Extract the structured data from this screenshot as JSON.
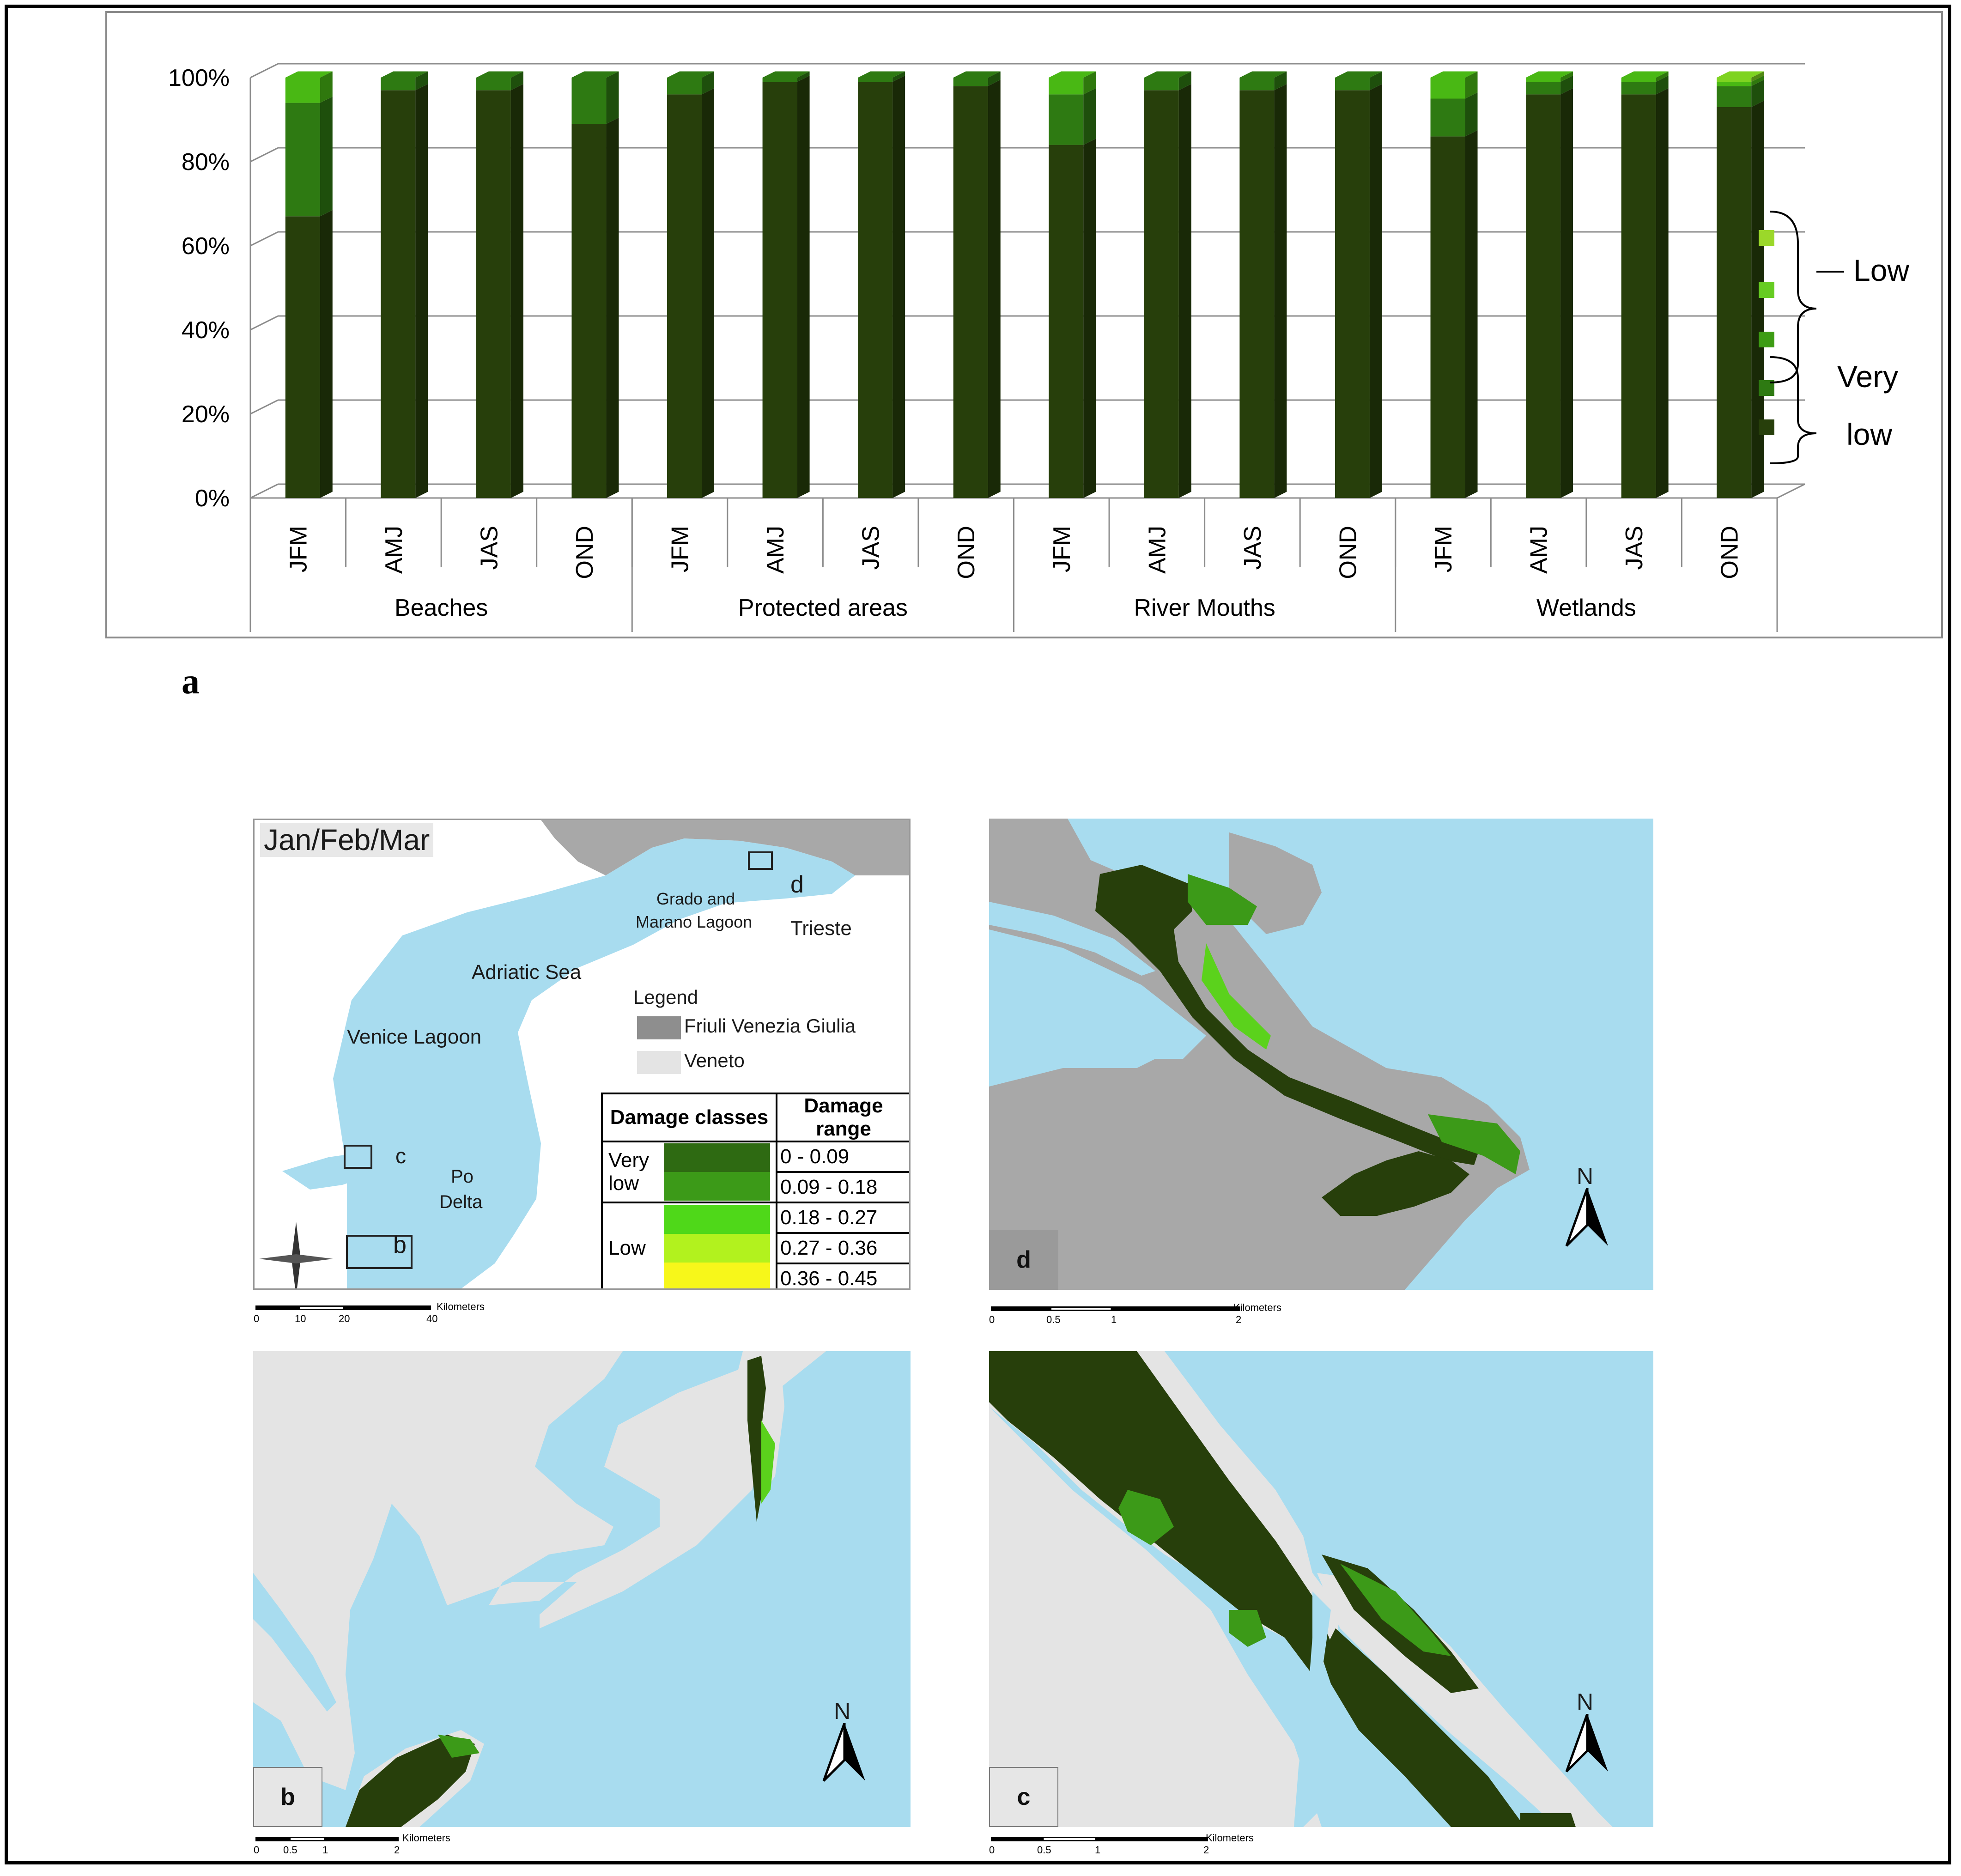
{
  "figure": {
    "panel_a_label": "a"
  },
  "chart_data": {
    "type": "bar",
    "stacked": true,
    "percent": true,
    "three_d": true,
    "y_ticks": [
      "0%",
      "20%",
      "40%",
      "60%",
      "80%",
      "100%"
    ],
    "ylim": [
      0,
      100
    ],
    "grid": true,
    "categories": [
      "JFM",
      "AMJ",
      "JAS",
      "OND",
      "JFM",
      "AMJ",
      "JAS",
      "OND",
      "JFM",
      "AMJ",
      "JAS",
      "OND",
      "JFM",
      "AMJ",
      "JAS",
      "OND"
    ],
    "groups": [
      "Beaches",
      "Protected areas",
      "River Mouths",
      "Wetlands"
    ],
    "series": [
      {
        "color": "#273f0b",
        "values": [
          67,
          97,
          97,
          89,
          96,
          99,
          99,
          98,
          84,
          97,
          97,
          97,
          86,
          96,
          96,
          93
        ]
      },
      {
        "color": "#2e7a12",
        "values": [
          27,
          3,
          3,
          11,
          4,
          1,
          1,
          2,
          12,
          3,
          3,
          3,
          9,
          3,
          3,
          5
        ]
      },
      {
        "color": "#49b814",
        "values": [
          6,
          0,
          0,
          0,
          0,
          0,
          0,
          0,
          4,
          0,
          0,
          0,
          5,
          1,
          1,
          1
        ]
      },
      {
        "color": "#7ed321",
        "values": [
          0,
          0,
          0,
          0,
          0,
          0,
          0,
          0,
          0,
          0,
          0,
          0,
          0,
          0,
          0,
          1
        ]
      }
    ],
    "legend": {
      "position": "right",
      "group_labels": [
        "Low",
        "Very",
        "low"
      ],
      "swatches": [
        "#9bd82a",
        "#66cc22",
        "#3d9c14",
        "#2e7a12",
        "#273f0b"
      ]
    }
  },
  "map": {
    "title": "Jan/Feb/Mar",
    "places": {
      "grado": "Grado and",
      "marano": "Marano Lagoon",
      "trieste": "Trieste",
      "adriatic": "Adriatic Sea",
      "venice": "Venice Lagoon",
      "po": "Po",
      "delta": "Delta"
    },
    "inset_letters": [
      "b",
      "c",
      "d"
    ],
    "legend_title": "Legend",
    "legend_items": [
      {
        "label": "Friuli Venezia Giulia",
        "color": "#8e8e8e"
      },
      {
        "label": "Veneto",
        "color": "#e4e4e4"
      }
    ],
    "damage_table": {
      "header_class": "Damage classes",
      "header_range": "Damage range",
      "class_very": "Very",
      "class_low_a": "low",
      "class_low": "Low",
      "rows": [
        {
          "range": "0 - 0.09",
          "color": "#2e6a12"
        },
        {
          "range": "0.09 - 0.18",
          "color": "#3c9a18"
        },
        {
          "range": "0.18 - 0.27",
          "color": "#4fd819"
        },
        {
          "range": "0.27 - 0.36",
          "color": "#b2f21e"
        },
        {
          "range": "0.36 - 0.45",
          "color": "#f7f71a"
        }
      ]
    },
    "scale_overview": {
      "ticks": [
        "0",
        "10",
        "20",
        "40"
      ],
      "unit": "Kilometers"
    },
    "scale_inset": {
      "ticks": [
        "0",
        "0.5",
        "1",
        "2"
      ],
      "unit": "Kilometers"
    },
    "north": "N",
    "panel_letters": {
      "b": "b",
      "c": "c",
      "d": "d"
    },
    "colors": {
      "sea": "#a8dcef",
      "land_fvg": "#a8a8a8",
      "land_veneto": "#e4e4e4",
      "very_low": "#273f0b",
      "low_edge": "#3c9a18",
      "low_bright": "#5bd21c"
    }
  }
}
